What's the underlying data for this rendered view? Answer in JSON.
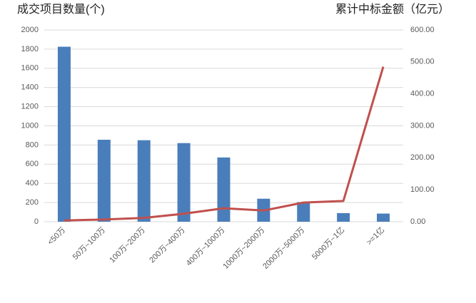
{
  "chart_data": {
    "type": "bar",
    "y_title": "成交项目数量(个)",
    "y2_title": "累计中标金额（亿元）",
    "categories": [
      "<50万",
      "50万~100万",
      "100万~200万",
      "200万~400万",
      "400万~1000万",
      "1000万~2000万",
      "2000万~5000万",
      "5000万~1亿",
      ">=1亿"
    ],
    "series": [
      {
        "name": "成交项目数量",
        "type": "bar",
        "color": "#4a7ebb",
        "values": [
          1825,
          855,
          850,
          820,
          670,
          240,
          205,
          90,
          85
        ]
      },
      {
        "name": "累计中标金额",
        "type": "line",
        "axis": "y2",
        "color": "#c0504d",
        "values": [
          4,
          7,
          12,
          25,
          42,
          35,
          60,
          65,
          485
        ]
      }
    ],
    "ylim": [
      0,
      2000
    ],
    "yticks": [
      0,
      200,
      400,
      600,
      800,
      1000,
      1200,
      1400,
      1600,
      1800,
      2000
    ],
    "y2lim": [
      0,
      600
    ],
    "y2ticks": [
      {
        "value": 0,
        "label": "0.00"
      },
      {
        "value": 100,
        "label": "100.00"
      },
      {
        "value": 200,
        "label": "200.00"
      },
      {
        "value": 300,
        "label": "300.00"
      },
      {
        "value": 400,
        "label": "400.00"
      },
      {
        "value": 500,
        "label": "500.00"
      },
      {
        "value": 600,
        "label": "600.00"
      }
    ],
    "grid": true
  }
}
